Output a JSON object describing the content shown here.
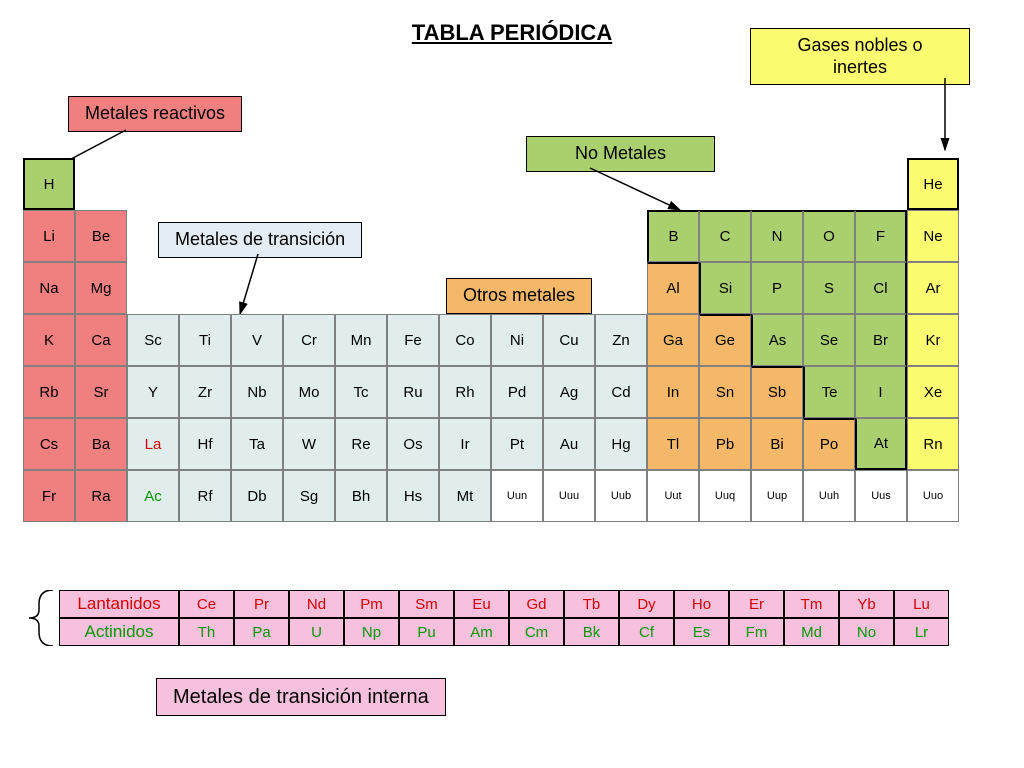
{
  "title": "TABLA PERIÓDICA",
  "colors": {
    "reactive_metals": "#f08080",
    "transition_metals": "#e0edec",
    "other_metals": "#f4b868",
    "nonmetals": "#a9cf6f",
    "noble_gases": "#fcfc70",
    "fblock": "#f7c0dd",
    "legend_transition": "#e5edf4",
    "border_thick": "#000000",
    "border_thin": "#808080",
    "text_red": "#d40000",
    "text_green": "#009900",
    "text_black": "#222222"
  },
  "legends": {
    "reactive": "Metales reactivos",
    "transition": "Metales de transición",
    "other": "Otros metales",
    "nonmetals": "No Metales",
    "noble": "Gases nobles o\ninertes",
    "fblock_label": "Metales de transición interna",
    "lanthanides": "Lantanidos",
    "actinides": "Actinidos"
  },
  "elements": [
    {
      "s": "H",
      "r": 1,
      "c": 1,
      "cat": "nonmetals",
      "border": "thick"
    },
    {
      "s": "He",
      "r": 1,
      "c": 18,
      "cat": "noble",
      "border": "thick"
    },
    {
      "s": "Li",
      "r": 2,
      "c": 1,
      "cat": "reactive"
    },
    {
      "s": "Be",
      "r": 2,
      "c": 2,
      "cat": "reactive"
    },
    {
      "s": "B",
      "r": 2,
      "c": 13,
      "cat": "nonmetals",
      "bt": 1,
      "bl": 1
    },
    {
      "s": "C",
      "r": 2,
      "c": 14,
      "cat": "nonmetals",
      "bt": 1
    },
    {
      "s": "N",
      "r": 2,
      "c": 15,
      "cat": "nonmetals",
      "bt": 1
    },
    {
      "s": "O",
      "r": 2,
      "c": 16,
      "cat": "nonmetals",
      "bt": 1
    },
    {
      "s": "F",
      "r": 2,
      "c": 17,
      "cat": "nonmetals",
      "bt": 1,
      "br": 1
    },
    {
      "s": "Ne",
      "r": 2,
      "c": 18,
      "cat": "noble"
    },
    {
      "s": "Na",
      "r": 3,
      "c": 1,
      "cat": "reactive"
    },
    {
      "s": "Mg",
      "r": 3,
      "c": 2,
      "cat": "reactive"
    },
    {
      "s": "Al",
      "r": 3,
      "c": 13,
      "cat": "other",
      "bt": 1
    },
    {
      "s": "Si",
      "r": 3,
      "c": 14,
      "cat": "nonmetals",
      "bl": 1
    },
    {
      "s": "P",
      "r": 3,
      "c": 15,
      "cat": "nonmetals"
    },
    {
      "s": "S",
      "r": 3,
      "c": 16,
      "cat": "nonmetals"
    },
    {
      "s": "Cl",
      "r": 3,
      "c": 17,
      "cat": "nonmetals",
      "br": 1
    },
    {
      "s": "Ar",
      "r": 3,
      "c": 18,
      "cat": "noble"
    },
    {
      "s": "K",
      "r": 4,
      "c": 1,
      "cat": "reactive"
    },
    {
      "s": "Ca",
      "r": 4,
      "c": 2,
      "cat": "reactive"
    },
    {
      "s": "Sc",
      "r": 4,
      "c": 3,
      "cat": "transition"
    },
    {
      "s": "Ti",
      "r": 4,
      "c": 4,
      "cat": "transition"
    },
    {
      "s": "V",
      "r": 4,
      "c": 5,
      "cat": "transition"
    },
    {
      "s": "Cr",
      "r": 4,
      "c": 6,
      "cat": "transition"
    },
    {
      "s": "Mn",
      "r": 4,
      "c": 7,
      "cat": "transition"
    },
    {
      "s": "Fe",
      "r": 4,
      "c": 8,
      "cat": "transition"
    },
    {
      "s": "Co",
      "r": 4,
      "c": 9,
      "cat": "transition"
    },
    {
      "s": "Ni",
      "r": 4,
      "c": 10,
      "cat": "transition"
    },
    {
      "s": "Cu",
      "r": 4,
      "c": 11,
      "cat": "transition"
    },
    {
      "s": "Zn",
      "r": 4,
      "c": 12,
      "cat": "transition"
    },
    {
      "s": "Ga",
      "r": 4,
      "c": 13,
      "cat": "other"
    },
    {
      "s": "Ge",
      "r": 4,
      "c": 14,
      "cat": "other",
      "bt": 1
    },
    {
      "s": "As",
      "r": 4,
      "c": 15,
      "cat": "nonmetals",
      "bl": 1
    },
    {
      "s": "Se",
      "r": 4,
      "c": 16,
      "cat": "nonmetals"
    },
    {
      "s": "Br",
      "r": 4,
      "c": 17,
      "cat": "nonmetals",
      "br": 1
    },
    {
      "s": "Kr",
      "r": 4,
      "c": 18,
      "cat": "noble"
    },
    {
      "s": "Rb",
      "r": 5,
      "c": 1,
      "cat": "reactive"
    },
    {
      "s": "Sr",
      "r": 5,
      "c": 2,
      "cat": "reactive"
    },
    {
      "s": "Y",
      "r": 5,
      "c": 3,
      "cat": "transition"
    },
    {
      "s": "Zr",
      "r": 5,
      "c": 4,
      "cat": "transition"
    },
    {
      "s": "Nb",
      "r": 5,
      "c": 5,
      "cat": "transition"
    },
    {
      "s": "Mo",
      "r": 5,
      "c": 6,
      "cat": "transition"
    },
    {
      "s": "Tc",
      "r": 5,
      "c": 7,
      "cat": "transition"
    },
    {
      "s": "Ru",
      "r": 5,
      "c": 8,
      "cat": "transition"
    },
    {
      "s": "Rh",
      "r": 5,
      "c": 9,
      "cat": "transition"
    },
    {
      "s": "Pd",
      "r": 5,
      "c": 10,
      "cat": "transition"
    },
    {
      "s": "Ag",
      "r": 5,
      "c": 11,
      "cat": "transition"
    },
    {
      "s": "Cd",
      "r": 5,
      "c": 12,
      "cat": "transition"
    },
    {
      "s": "In",
      "r": 5,
      "c": 13,
      "cat": "other"
    },
    {
      "s": "Sn",
      "r": 5,
      "c": 14,
      "cat": "other"
    },
    {
      "s": "Sb",
      "r": 5,
      "c": 15,
      "cat": "other",
      "bt": 1
    },
    {
      "s": "Te",
      "r": 5,
      "c": 16,
      "cat": "nonmetals",
      "bl": 1
    },
    {
      "s": "I",
      "r": 5,
      "c": 17,
      "cat": "nonmetals",
      "br": 1
    },
    {
      "s": "Xe",
      "r": 5,
      "c": 18,
      "cat": "noble"
    },
    {
      "s": "Cs",
      "r": 6,
      "c": 1,
      "cat": "reactive"
    },
    {
      "s": "Ba",
      "r": 6,
      "c": 2,
      "cat": "reactive"
    },
    {
      "s": "La",
      "r": 6,
      "c": 3,
      "cat": "transition",
      "txt": "red"
    },
    {
      "s": "Hf",
      "r": 6,
      "c": 4,
      "cat": "transition"
    },
    {
      "s": "Ta",
      "r": 6,
      "c": 5,
      "cat": "transition"
    },
    {
      "s": "W",
      "r": 6,
      "c": 6,
      "cat": "transition"
    },
    {
      "s": "Re",
      "r": 6,
      "c": 7,
      "cat": "transition"
    },
    {
      "s": "Os",
      "r": 6,
      "c": 8,
      "cat": "transition"
    },
    {
      "s": "Ir",
      "r": 6,
      "c": 9,
      "cat": "transition"
    },
    {
      "s": "Pt",
      "r": 6,
      "c": 10,
      "cat": "transition"
    },
    {
      "s": "Au",
      "r": 6,
      "c": 11,
      "cat": "transition"
    },
    {
      "s": "Hg",
      "r": 6,
      "c": 12,
      "cat": "transition"
    },
    {
      "s": "Tl",
      "r": 6,
      "c": 13,
      "cat": "other"
    },
    {
      "s": "Pb",
      "r": 6,
      "c": 14,
      "cat": "other"
    },
    {
      "s": "Bi",
      "r": 6,
      "c": 15,
      "cat": "other"
    },
    {
      "s": "Po",
      "r": 6,
      "c": 16,
      "cat": "other",
      "bt": 1
    },
    {
      "s": "At",
      "r": 6,
      "c": 17,
      "cat": "nonmetals",
      "bl": 1,
      "bb": 1,
      "br": 1
    },
    {
      "s": "Rn",
      "r": 6,
      "c": 18,
      "cat": "noble"
    },
    {
      "s": "Fr",
      "r": 7,
      "c": 1,
      "cat": "reactive"
    },
    {
      "s": "Ra",
      "r": 7,
      "c": 2,
      "cat": "reactive"
    },
    {
      "s": "Ac",
      "r": 7,
      "c": 3,
      "cat": "transition",
      "txt": "green"
    },
    {
      "s": "Rf",
      "r": 7,
      "c": 4,
      "cat": "transition"
    },
    {
      "s": "Db",
      "r": 7,
      "c": 5,
      "cat": "transition"
    },
    {
      "s": "Sg",
      "r": 7,
      "c": 6,
      "cat": "transition"
    },
    {
      "s": "Bh",
      "r": 7,
      "c": 7,
      "cat": "transition"
    },
    {
      "s": "Hs",
      "r": 7,
      "c": 8,
      "cat": "transition"
    },
    {
      "s": "Mt",
      "r": 7,
      "c": 9,
      "cat": "transition"
    },
    {
      "s": "Uun",
      "r": 7,
      "c": 10,
      "cat": "blank",
      "small": 1
    },
    {
      "s": "Uuu",
      "r": 7,
      "c": 11,
      "cat": "blank",
      "small": 1
    },
    {
      "s": "Uub",
      "r": 7,
      "c": 12,
      "cat": "blank",
      "small": 1
    },
    {
      "s": "Uut",
      "r": 7,
      "c": 13,
      "cat": "blank",
      "small": 1
    },
    {
      "s": "Uuq",
      "r": 7,
      "c": 14,
      "cat": "blank",
      "small": 1
    },
    {
      "s": "Uup",
      "r": 7,
      "c": 15,
      "cat": "blank",
      "small": 1
    },
    {
      "s": "Uuh",
      "r": 7,
      "c": 16,
      "cat": "blank",
      "small": 1
    },
    {
      "s": "Uus",
      "r": 7,
      "c": 17,
      "cat": "blank",
      "small": 1
    },
    {
      "s": "Uuo",
      "r": 7,
      "c": 18,
      "cat": "blank",
      "small": 1
    }
  ],
  "lanthanides": [
    "Ce",
    "Pr",
    "Nd",
    "Pm",
    "Sm",
    "Eu",
    "Gd",
    "Tb",
    "Dy",
    "Ho",
    "Er",
    "Tm",
    "Yb",
    "Lu"
  ],
  "actinides": [
    "Th",
    "Pa",
    "U",
    "Np",
    "Pu",
    "Am",
    "Cm",
    "Bk",
    "Cf",
    "Es",
    "Fm",
    "Md",
    "No",
    "Lr"
  ]
}
